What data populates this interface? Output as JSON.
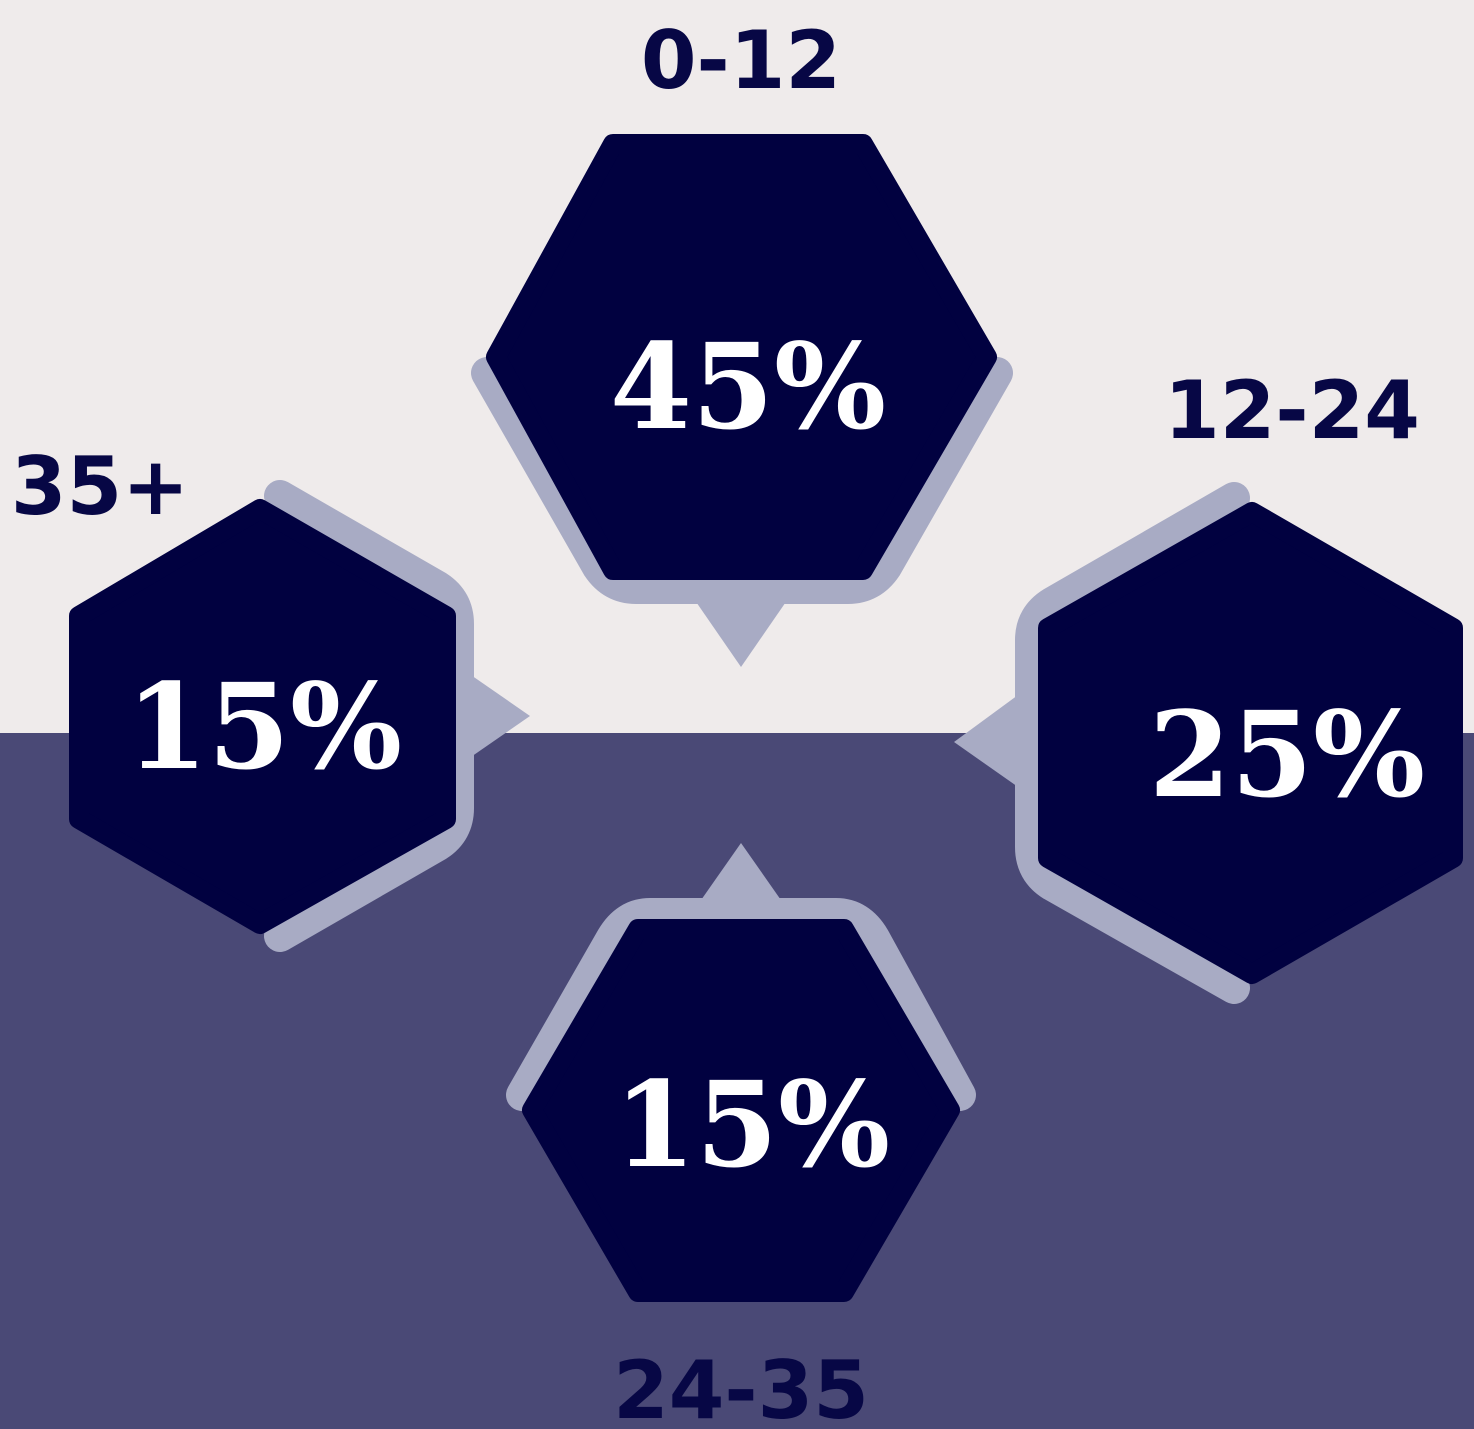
{
  "colors": {
    "background_top": "#efebeb",
    "background_bottom": "#4a4976",
    "hexagon_fill": "#010140",
    "accent_stroke": "#a8abc4",
    "label_text": "#070745",
    "value_text": "#ffffff"
  },
  "segments": [
    {
      "id": "top",
      "range": "0-12",
      "value": "45%"
    },
    {
      "id": "right",
      "range": "12-24",
      "value": "25%"
    },
    {
      "id": "bottom",
      "range": "24-35",
      "value": "15%"
    },
    {
      "id": "left",
      "range": "35+",
      "value": "15%"
    }
  ]
}
